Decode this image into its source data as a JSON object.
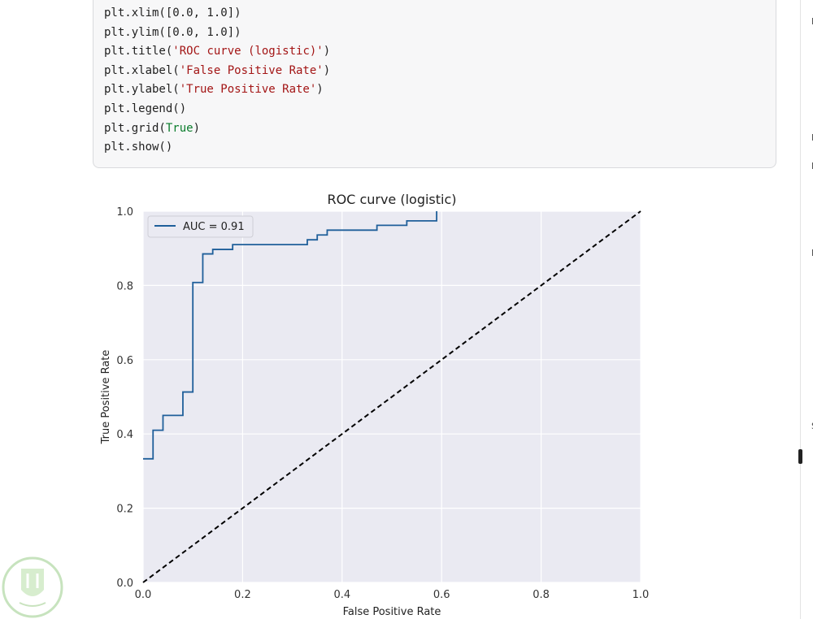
{
  "code_cell": {
    "lines": [
      [
        {
          "t": "plt.xlim([0.0, 1.0])",
          "c": ""
        }
      ],
      [
        {
          "t": "plt.ylim([0.0, 1.0])",
          "c": ""
        }
      ],
      [
        {
          "t": "plt.title(",
          "c": ""
        },
        {
          "t": "'ROC curve (logistic)'",
          "c": "str"
        },
        {
          "t": ")",
          "c": ""
        }
      ],
      [
        {
          "t": "plt.xlabel(",
          "c": ""
        },
        {
          "t": "'False Positive Rate'",
          "c": "str"
        },
        {
          "t": ")",
          "c": ""
        }
      ],
      [
        {
          "t": "plt.ylabel(",
          "c": ""
        },
        {
          "t": "'True Positive Rate'",
          "c": "str"
        },
        {
          "t": ")",
          "c": ""
        }
      ],
      [
        {
          "t": "plt.legend()",
          "c": ""
        }
      ],
      [
        {
          "t": "plt.grid(",
          "c": ""
        },
        {
          "t": "True",
          "c": "kw"
        },
        {
          "t": ")",
          "c": ""
        }
      ],
      [
        {
          "t": "plt.show()",
          "c": ""
        }
      ]
    ]
  },
  "right_edge_chars": [
    "H",
    "I",
    "E",
    "D",
    "S"
  ],
  "colors": {
    "code_bg": "#f7f7f8",
    "string": "#a31515",
    "keyword": "#0b7d2c",
    "plot_bg": "#eaeaf2",
    "roc_line": "#1f5f9a",
    "diagonal": "#000000"
  },
  "chart_data": {
    "type": "line",
    "title": "ROC curve (logistic)",
    "xlabel": "False Positive Rate",
    "ylabel": "True Positive Rate",
    "xlim": [
      0.0,
      1.0
    ],
    "ylim": [
      0.0,
      1.0
    ],
    "xticks": [
      "0.0",
      "0.2",
      "0.4",
      "0.6",
      "0.8",
      "1.0"
    ],
    "yticks": [
      "0.0",
      "0.2",
      "0.4",
      "0.6",
      "0.8",
      "1.0"
    ],
    "grid": true,
    "legend_position": "upper-left",
    "series": [
      {
        "name": "AUC = 0.91",
        "style": "solid",
        "x": [
          0.0,
          0.02,
          0.02,
          0.04,
          0.04,
          0.08,
          0.08,
          0.1,
          0.1,
          0.12,
          0.12,
          0.14,
          0.14,
          0.18,
          0.18,
          0.33,
          0.33,
          0.35,
          0.35,
          0.37,
          0.37,
          0.47,
          0.47,
          0.53,
          0.53,
          0.59,
          0.59
        ],
        "y": [
          0.333,
          0.333,
          0.41,
          0.41,
          0.45,
          0.45,
          0.513,
          0.513,
          0.808,
          0.808,
          0.885,
          0.885,
          0.897,
          0.897,
          0.91,
          0.91,
          0.923,
          0.923,
          0.936,
          0.936,
          0.949,
          0.949,
          0.962,
          0.962,
          0.974,
          0.974,
          1.0
        ]
      },
      {
        "style": "dashed",
        "x": [
          0.0,
          1.0
        ],
        "y": [
          0.0,
          1.0
        ]
      }
    ]
  }
}
